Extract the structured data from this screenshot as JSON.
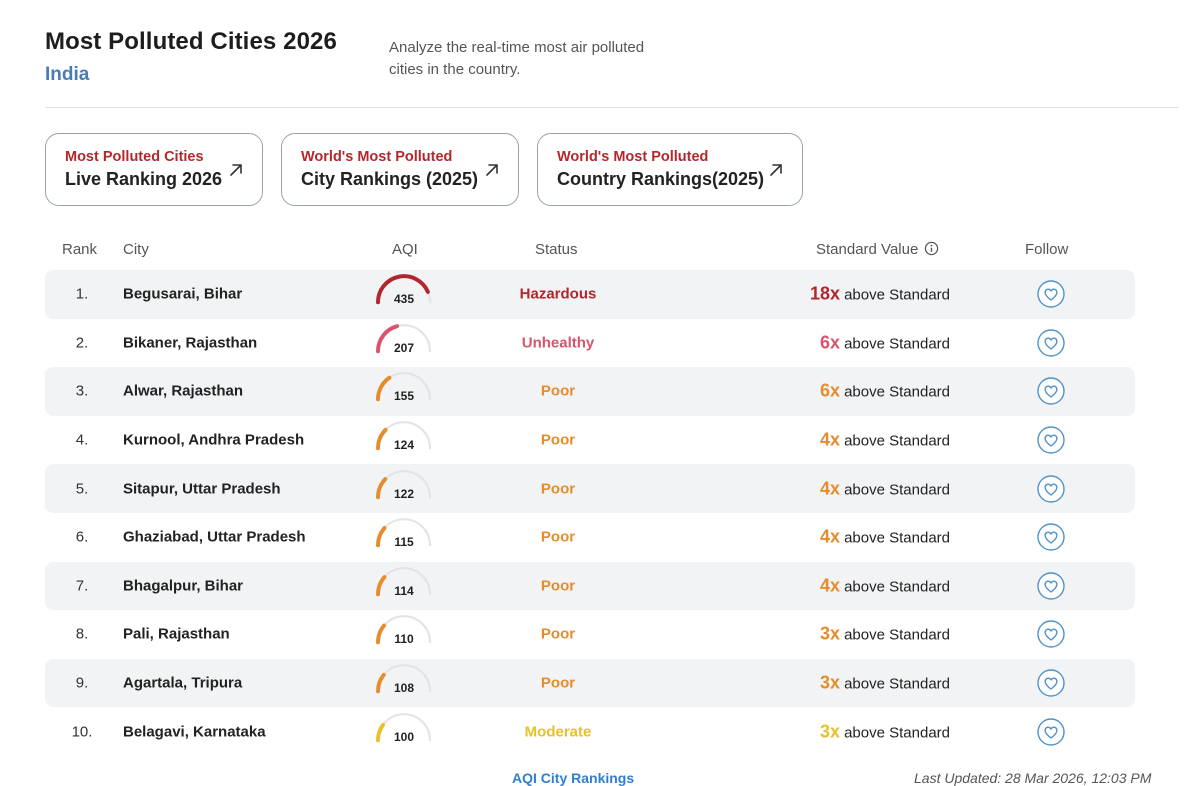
{
  "header": {
    "title": "Most Polluted Cities 2026",
    "subtitle": "India",
    "description": "Analyze the real-time most air polluted cities in the country."
  },
  "cards": [
    {
      "kicker": "Most Polluted Cities",
      "main": "Live Ranking 2026",
      "icon": "arrow-up-right-icon"
    },
    {
      "kicker": "World's Most Polluted",
      "main": "City Rankings (2025)",
      "icon": "arrow-up-right-icon"
    },
    {
      "kicker": "World's Most Polluted",
      "main": "Country Rankings(2025)",
      "icon": "arrow-up-right-icon"
    }
  ],
  "table": {
    "headers": {
      "rank": "Rank",
      "city": "City",
      "aqi": "AQI",
      "status": "Status",
      "standard": "Standard Value",
      "follow": "Follow"
    },
    "standard_suffix": "above Standard",
    "aqi_scale_max": 500,
    "rows": [
      {
        "rank": "1.",
        "city": "Begusarai, Bihar",
        "aqi": 435,
        "status": "Hazardous",
        "mult": "18x",
        "color": "#b1262e"
      },
      {
        "rank": "2.",
        "city": "Bikaner, Rajasthan",
        "aqi": 207,
        "status": "Unhealthy",
        "mult": "6x",
        "color": "#d9546b"
      },
      {
        "rank": "3.",
        "city": "Alwar, Rajasthan",
        "aqi": 155,
        "status": "Poor",
        "mult": "6x",
        "color": "#e58c2c"
      },
      {
        "rank": "4.",
        "city": "Kurnool, Andhra Pradesh",
        "aqi": 124,
        "status": "Poor",
        "mult": "4x",
        "color": "#e58c2c"
      },
      {
        "rank": "5.",
        "city": "Sitapur, Uttar Pradesh",
        "aqi": 122,
        "status": "Poor",
        "mult": "4x",
        "color": "#e58c2c"
      },
      {
        "rank": "6.",
        "city": "Ghaziabad, Uttar Pradesh",
        "aqi": 115,
        "status": "Poor",
        "mult": "4x",
        "color": "#e58c2c"
      },
      {
        "rank": "7.",
        "city": "Bhagalpur, Bihar",
        "aqi": 114,
        "status": "Poor",
        "mult": "4x",
        "color": "#e58c2c"
      },
      {
        "rank": "8.",
        "city": "Pali, Rajasthan",
        "aqi": 110,
        "status": "Poor",
        "mult": "3x",
        "color": "#e58c2c"
      },
      {
        "rank": "9.",
        "city": "Agartala, Tripura",
        "aqi": 108,
        "status": "Poor",
        "mult": "3x",
        "color": "#e58c2c"
      },
      {
        "rank": "10.",
        "city": "Belagavi, Karnataka",
        "aqi": 100,
        "status": "Moderate",
        "mult": "3x",
        "color": "#e8c02a"
      }
    ]
  },
  "colors": {
    "accent": "#4a7ab8",
    "card_kicker": "#b3282d",
    "follow_icon": "#4f92c9",
    "gauge_track": "#e4e4e4"
  },
  "footer": {
    "link": "AQI City Rankings",
    "updated": "Last Updated: 28 Mar 2026, 12:03 PM"
  }
}
